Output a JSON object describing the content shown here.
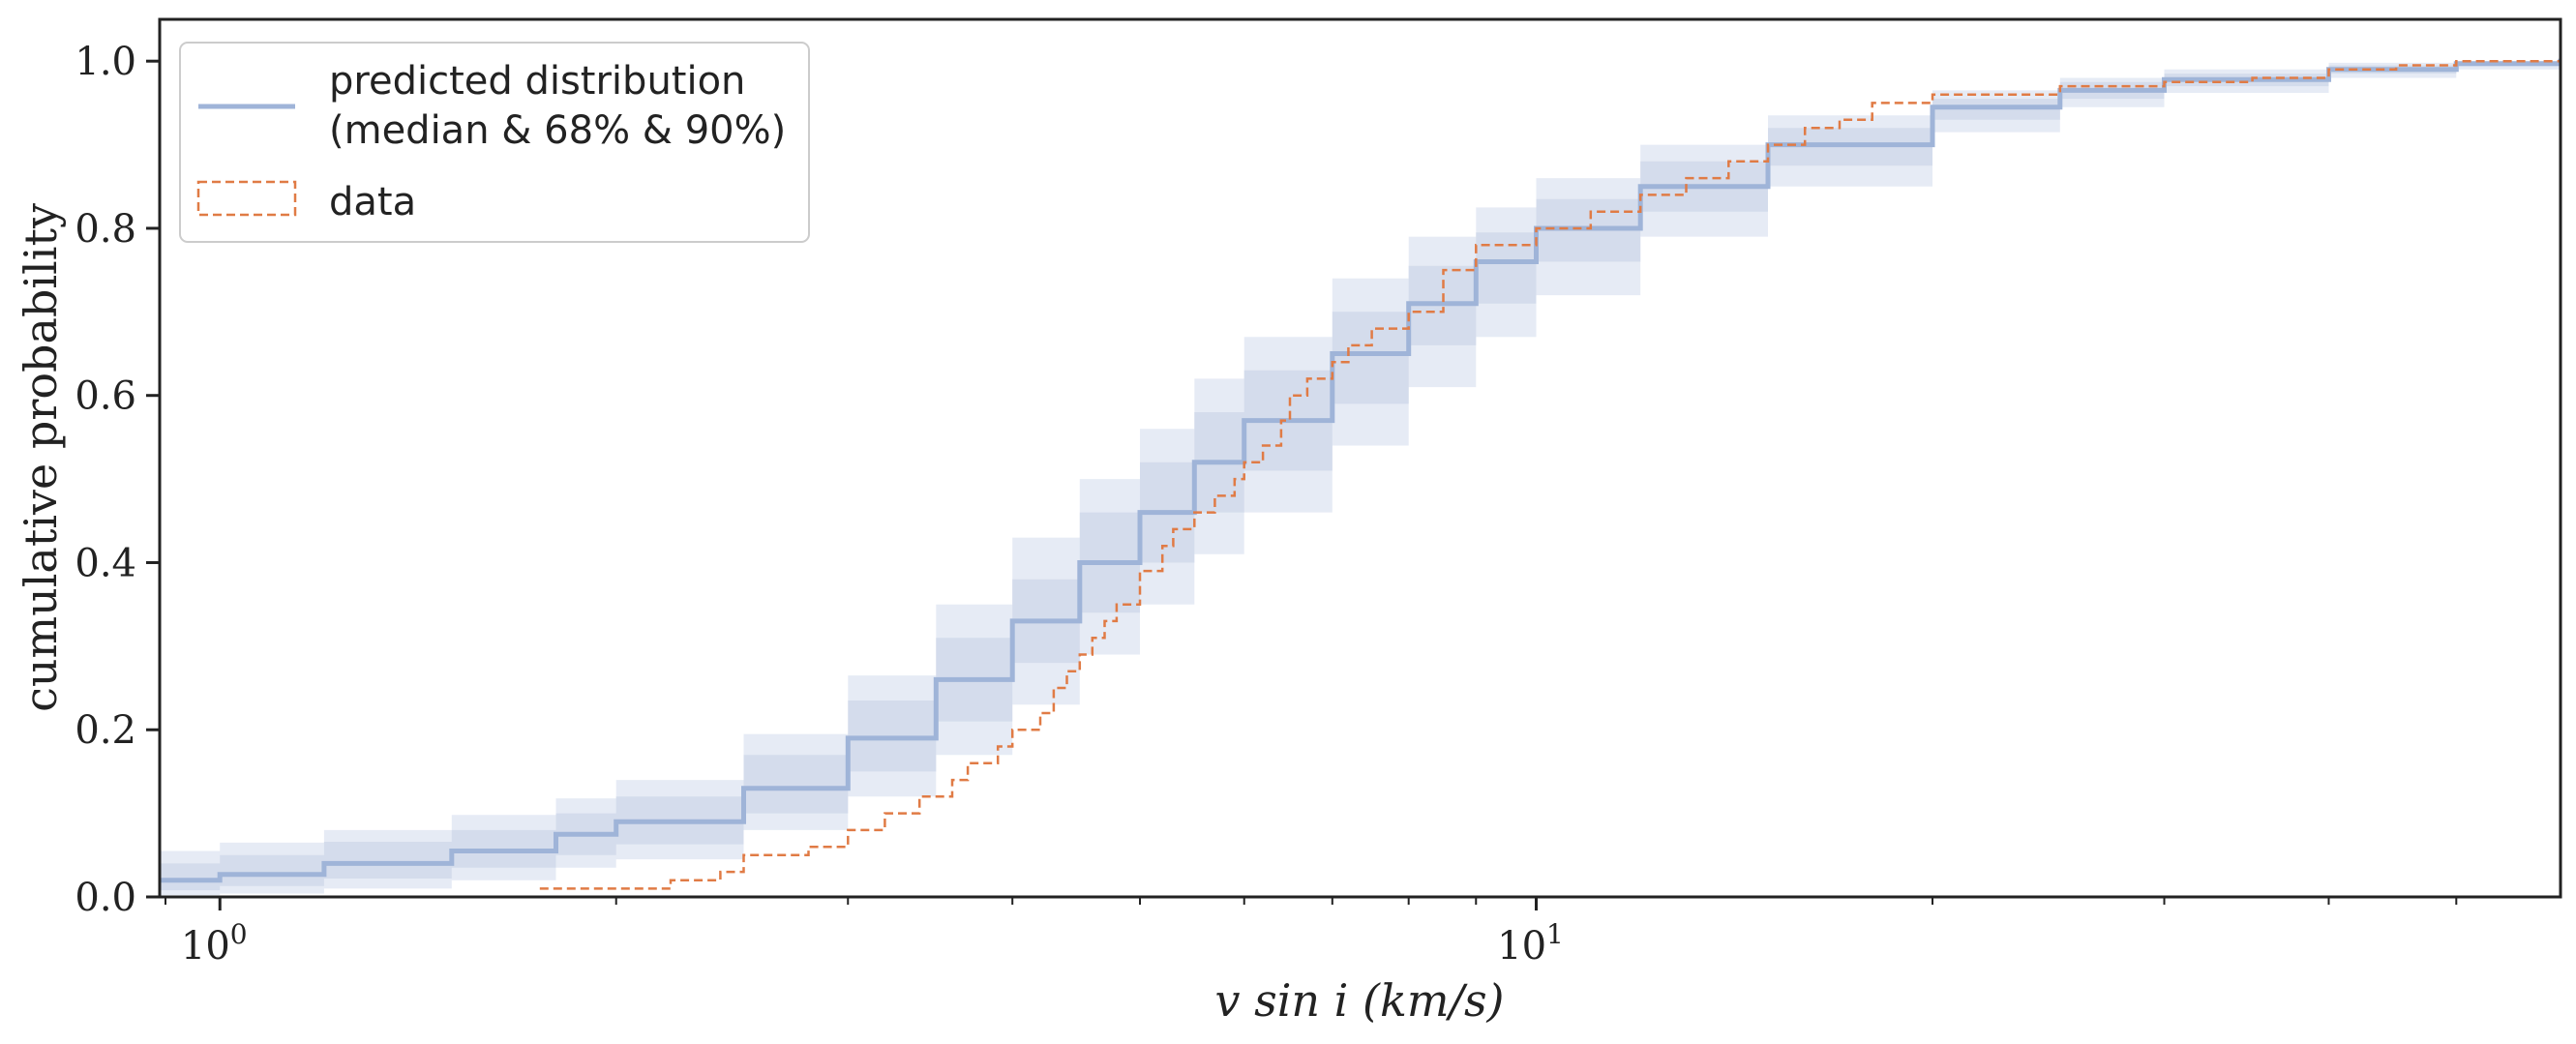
{
  "chart_data": {
    "type": "line",
    "xlabel": "v sin i (km/s)",
    "ylabel": "cumulative probability",
    "x_scale": "log",
    "xlim": [
      0.9,
      60
    ],
    "ylim": [
      0,
      1.05
    ],
    "x_major_ticks": [
      {
        "value": 1,
        "base": "10",
        "exp": "0"
      },
      {
        "value": 10,
        "base": "10",
        "exp": "1"
      }
    ],
    "x_minor_ticks": [
      2,
      3,
      4,
      5,
      6,
      7,
      8,
      9,
      20,
      30,
      40,
      50
    ],
    "y_ticks": [
      0.0,
      0.2,
      0.4,
      0.6,
      0.8,
      1.0
    ],
    "y_tick_labels": [
      "0.0",
      "0.2",
      "0.4",
      "0.6",
      "0.8",
      "1.0"
    ],
    "grid": false,
    "legend_position": "top-left",
    "colors": {
      "median": "#9fb4d8",
      "band68": "#d4dcec",
      "band90": "#e6ebf5",
      "data": "#e07b45"
    },
    "series": [
      {
        "name": "predicted distribution\n(median & 68% & 90%)",
        "legend_lines": [
          "predicted distribution",
          "(median & 68% & 90%)"
        ],
        "x": [
          0.9,
          1.0,
          1.2,
          1.5,
          1.8,
          2.0,
          2.5,
          3.0,
          3.5,
          4.0,
          4.5,
          5.0,
          5.5,
          6.0,
          7.0,
          8.0,
          9.0,
          10.0,
          12.0,
          15.0,
          20.0,
          25.0,
          30.0,
          40.0,
          50.0,
          60.0
        ],
        "median": [
          0.02,
          0.027,
          0.04,
          0.055,
          0.075,
          0.09,
          0.13,
          0.19,
          0.26,
          0.33,
          0.4,
          0.46,
          0.52,
          0.57,
          0.65,
          0.71,
          0.76,
          0.8,
          0.85,
          0.9,
          0.945,
          0.965,
          0.978,
          0.99,
          0.997,
          1.0
        ],
        "p16": [
          0.008,
          0.013,
          0.022,
          0.035,
          0.05,
          0.063,
          0.1,
          0.15,
          0.21,
          0.28,
          0.34,
          0.4,
          0.46,
          0.51,
          0.59,
          0.66,
          0.71,
          0.76,
          0.82,
          0.875,
          0.93,
          0.955,
          0.97,
          0.985,
          0.994,
          1.0
        ],
        "p84": [
          0.04,
          0.05,
          0.066,
          0.08,
          0.1,
          0.12,
          0.17,
          0.235,
          0.31,
          0.38,
          0.46,
          0.52,
          0.58,
          0.63,
          0.7,
          0.755,
          0.795,
          0.835,
          0.88,
          0.92,
          0.955,
          0.975,
          0.985,
          0.995,
          0.999,
          1.0
        ],
        "p5": [
          0.002,
          0.004,
          0.01,
          0.02,
          0.035,
          0.045,
          0.08,
          0.12,
          0.17,
          0.23,
          0.29,
          0.35,
          0.41,
          0.46,
          0.54,
          0.61,
          0.67,
          0.72,
          0.79,
          0.85,
          0.915,
          0.945,
          0.962,
          0.98,
          0.99,
          1.0
        ],
        "p95": [
          0.055,
          0.065,
          0.08,
          0.098,
          0.118,
          0.14,
          0.195,
          0.265,
          0.35,
          0.43,
          0.5,
          0.56,
          0.62,
          0.67,
          0.74,
          0.79,
          0.825,
          0.86,
          0.9,
          0.935,
          0.965,
          0.98,
          0.99,
          0.998,
          1.0,
          1.0
        ]
      },
      {
        "name": "data",
        "x": [
          1.75,
          2.2,
          2.4,
          2.5,
          2.8,
          3.0,
          3.2,
          3.4,
          3.6,
          3.7,
          3.9,
          4.0,
          4.2,
          4.3,
          4.4,
          4.5,
          4.6,
          4.7,
          4.8,
          5.0,
          5.2,
          5.3,
          5.5,
          5.7,
          5.9,
          6.0,
          6.2,
          6.4,
          6.5,
          6.7,
          7.0,
          7.2,
          7.5,
          8.0,
          8.5,
          9.0,
          10.0,
          11.0,
          12.0,
          13.0,
          14.0,
          15.0,
          16.0,
          17.0,
          18.0,
          20.0,
          25.0,
          30.0,
          35.0,
          40.0,
          45.0,
          50.0,
          60.0
        ],
        "y": [
          0.01,
          0.02,
          0.03,
          0.05,
          0.06,
          0.08,
          0.1,
          0.12,
          0.14,
          0.16,
          0.18,
          0.2,
          0.22,
          0.25,
          0.27,
          0.29,
          0.31,
          0.33,
          0.35,
          0.39,
          0.42,
          0.44,
          0.46,
          0.48,
          0.5,
          0.52,
          0.54,
          0.57,
          0.6,
          0.62,
          0.64,
          0.66,
          0.68,
          0.7,
          0.75,
          0.78,
          0.8,
          0.82,
          0.84,
          0.86,
          0.88,
          0.9,
          0.92,
          0.93,
          0.95,
          0.96,
          0.97,
          0.975,
          0.98,
          0.99,
          0.995,
          1.0,
          1.0
        ]
      }
    ]
  }
}
